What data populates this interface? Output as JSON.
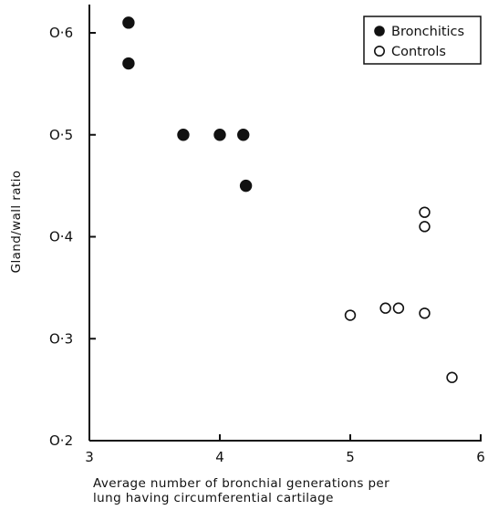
{
  "chart_data": {
    "type": "scatter",
    "title": "",
    "xlabel": [
      "Average number of bronchial generations per",
      "lung having circumferential cartilage"
    ],
    "ylabel": "Gland/wall ratio",
    "xlim": [
      3,
      6
    ],
    "ylim": [
      0.2,
      0.6
    ],
    "x_ticks": [
      "3",
      "4",
      "5",
      "6"
    ],
    "y_ticks": [
      "O·2",
      "O·3",
      "O·4",
      "O·5",
      "O·6"
    ],
    "grid": false,
    "legend_position": "top-right",
    "series": [
      {
        "name": "Bronchitics",
        "marker": "filled-circle",
        "color": "#111111",
        "points": [
          [
            3.3,
            0.61
          ],
          [
            3.3,
            0.57
          ],
          [
            3.72,
            0.5
          ],
          [
            4.0,
            0.5
          ],
          [
            4.18,
            0.5
          ],
          [
            4.2,
            0.45
          ]
        ]
      },
      {
        "name": "Controls",
        "marker": "open-circle",
        "color": "#111111",
        "points": [
          [
            5.0,
            0.323
          ],
          [
            5.27,
            0.33
          ],
          [
            5.37,
            0.33
          ],
          [
            5.57,
            0.325
          ],
          [
            5.57,
            0.41
          ],
          [
            5.57,
            0.424
          ],
          [
            5.78,
            0.262
          ]
        ]
      }
    ]
  }
}
